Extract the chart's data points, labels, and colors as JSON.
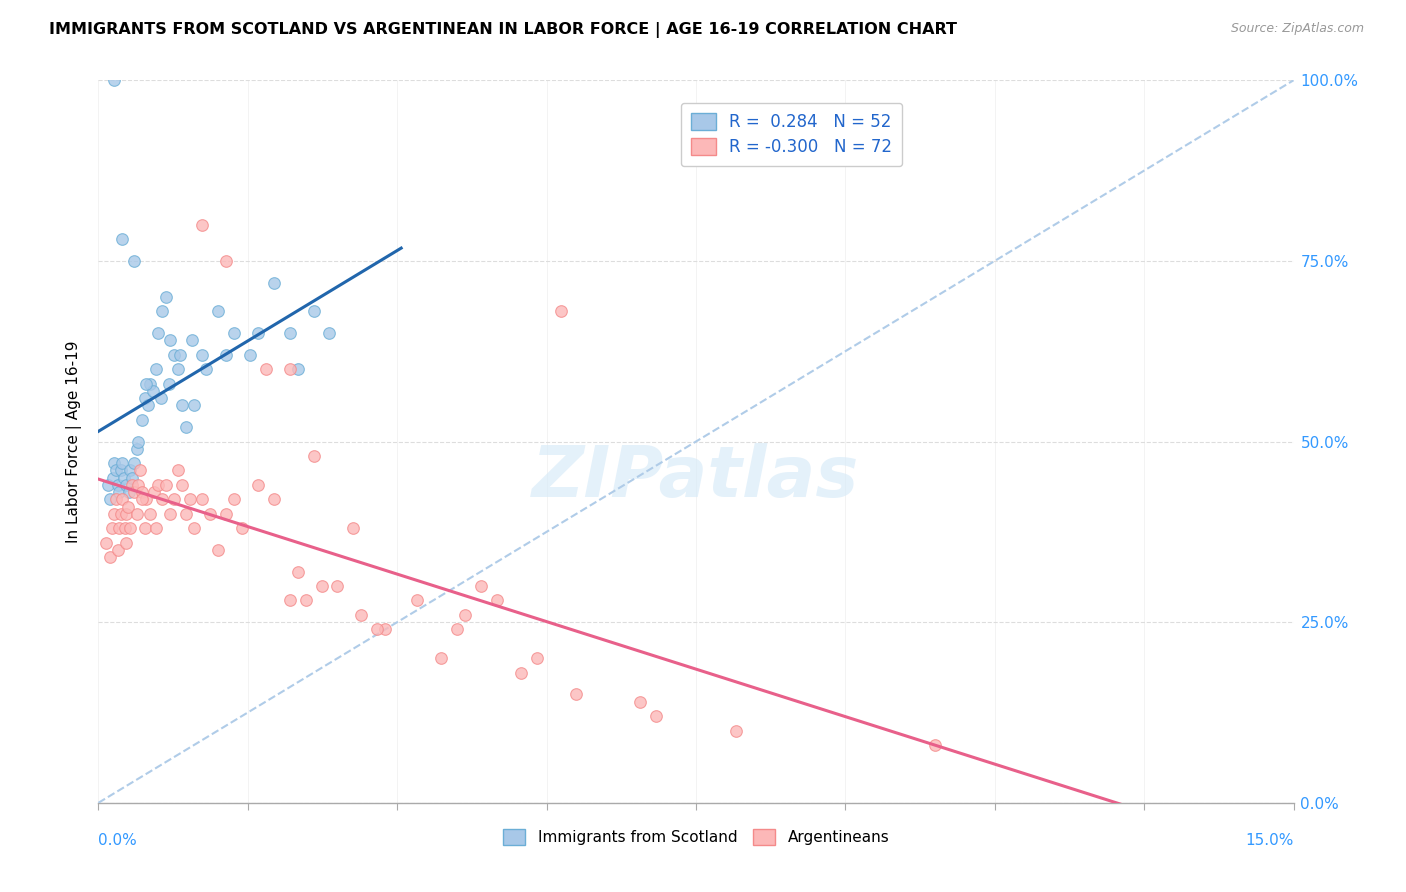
{
  "title": "IMMIGRANTS FROM SCOTLAND VS ARGENTINEAN IN LABOR FORCE | AGE 16-19 CORRELATION CHART",
  "source": "Source: ZipAtlas.com",
  "ylabel": "In Labor Force | Age 16-19",
  "ytick_labels": [
    "0.0%",
    "25.0%",
    "50.0%",
    "75.0%",
    "100.0%"
  ],
  "ytick_vals": [
    0,
    25,
    50,
    75,
    100
  ],
  "xmin": 0.0,
  "xmax": 15.0,
  "ymin": 0.0,
  "ymax": 100.0,
  "scotland_color": "#a8c8e8",
  "scotland_edge": "#6baed6",
  "argentina_color": "#fcb8b8",
  "argentina_edge": "#f48a8a",
  "trend_sc_color": "#2166ac",
  "trend_ar_color": "#e8608a",
  "dash_color": "#b0cce8",
  "watermark_color": "#d6eaf8",
  "dot_size": 70,
  "scatter_alpha": 0.8,
  "sc_x": [
    0.12,
    0.15,
    0.18,
    0.2,
    0.22,
    0.24,
    0.26,
    0.28,
    0.3,
    0.32,
    0.35,
    0.38,
    0.4,
    0.42,
    0.45,
    0.48,
    0.5,
    0.55,
    0.58,
    0.62,
    0.65,
    0.68,
    0.72,
    0.75,
    0.8,
    0.85,
    0.9,
    0.95,
    1.0,
    1.05,
    1.1,
    1.2,
    1.3,
    1.5,
    1.7,
    2.0,
    2.2,
    2.5,
    2.7,
    2.9,
    0.2,
    0.3,
    0.45,
    0.6,
    0.78,
    0.88,
    1.02,
    1.18,
    1.35,
    1.6,
    1.9,
    2.4
  ],
  "sc_y": [
    44,
    42,
    45,
    47,
    46,
    44,
    43,
    46,
    47,
    45,
    44,
    43,
    46,
    45,
    47,
    49,
    50,
    53,
    56,
    55,
    58,
    57,
    60,
    65,
    68,
    70,
    64,
    62,
    60,
    55,
    52,
    55,
    62,
    68,
    65,
    65,
    72,
    60,
    68,
    65,
    100,
    78,
    75,
    58,
    56,
    58,
    62,
    64,
    60,
    62,
    62,
    65
  ],
  "ar_x": [
    0.1,
    0.14,
    0.17,
    0.2,
    0.22,
    0.24,
    0.26,
    0.28,
    0.3,
    0.33,
    0.35,
    0.37,
    0.4,
    0.42,
    0.45,
    0.48,
    0.5,
    0.52,
    0.55,
    0.58,
    0.6,
    0.65,
    0.7,
    0.72,
    0.75,
    0.8,
    0.85,
    0.9,
    0.95,
    1.0,
    1.05,
    1.1,
    1.15,
    1.2,
    1.3,
    1.4,
    1.5,
    1.6,
    1.7,
    1.8,
    2.0,
    2.2,
    2.4,
    2.5,
    2.6,
    2.8,
    3.0,
    3.3,
    3.6,
    4.0,
    4.5,
    5.0,
    5.5,
    6.0,
    7.0,
    8.0,
    4.3,
    3.5,
    4.8,
    5.8,
    10.5,
    2.4,
    1.3,
    1.6,
    2.1,
    2.7,
    3.2,
    4.6,
    5.3,
    6.8,
    0.35,
    0.55
  ],
  "ar_y": [
    36,
    34,
    38,
    40,
    42,
    35,
    38,
    40,
    42,
    38,
    40,
    41,
    38,
    44,
    43,
    40,
    44,
    46,
    43,
    38,
    42,
    40,
    43,
    38,
    44,
    42,
    44,
    40,
    42,
    46,
    44,
    40,
    42,
    38,
    42,
    40,
    35,
    40,
    42,
    38,
    44,
    42,
    28,
    32,
    28,
    30,
    30,
    26,
    24,
    28,
    24,
    28,
    20,
    15,
    12,
    10,
    20,
    24,
    30,
    68,
    8,
    60,
    80,
    75,
    60,
    48,
    38,
    26,
    18,
    14,
    36,
    42
  ]
}
